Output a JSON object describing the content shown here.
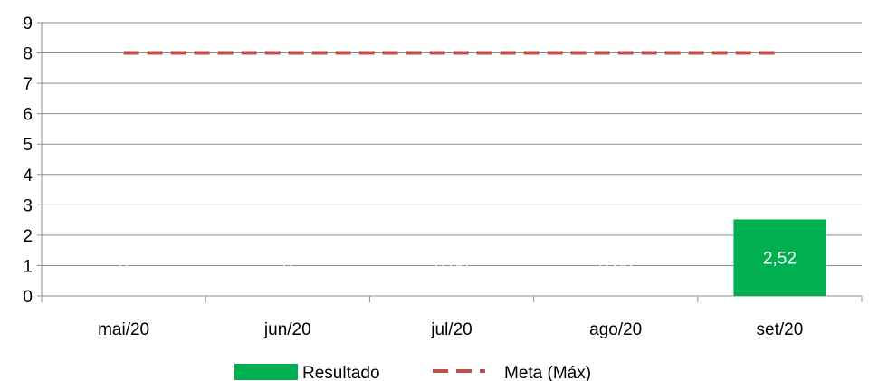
{
  "chart_data": {
    "type": "bar",
    "categories": [
      "mai/20",
      "jun/20",
      "jul/20",
      "ago/20",
      "set/20"
    ],
    "series": [
      {
        "name": "Resultado",
        "kind": "bar",
        "color": "#00b050",
        "values": [
          0,
          0,
          0.0,
          0.0,
          2.52
        ],
        "labels": [
          "0",
          "0",
          "0,00",
          "0,00",
          "2,52"
        ]
      },
      {
        "name": "Meta (Máx)",
        "kind": "line",
        "style": "dashed",
        "color": "#c0504d",
        "values": [
          8,
          8,
          8,
          8,
          8
        ]
      }
    ],
    "y_ticks": [
      "0",
      "1",
      "2",
      "3",
      "4",
      "5",
      "6",
      "7",
      "8",
      "9"
    ],
    "ylim": [
      0,
      9
    ],
    "grid": true,
    "legend_position": "bottom",
    "title": "",
    "xlabel": "",
    "ylabel": ""
  }
}
